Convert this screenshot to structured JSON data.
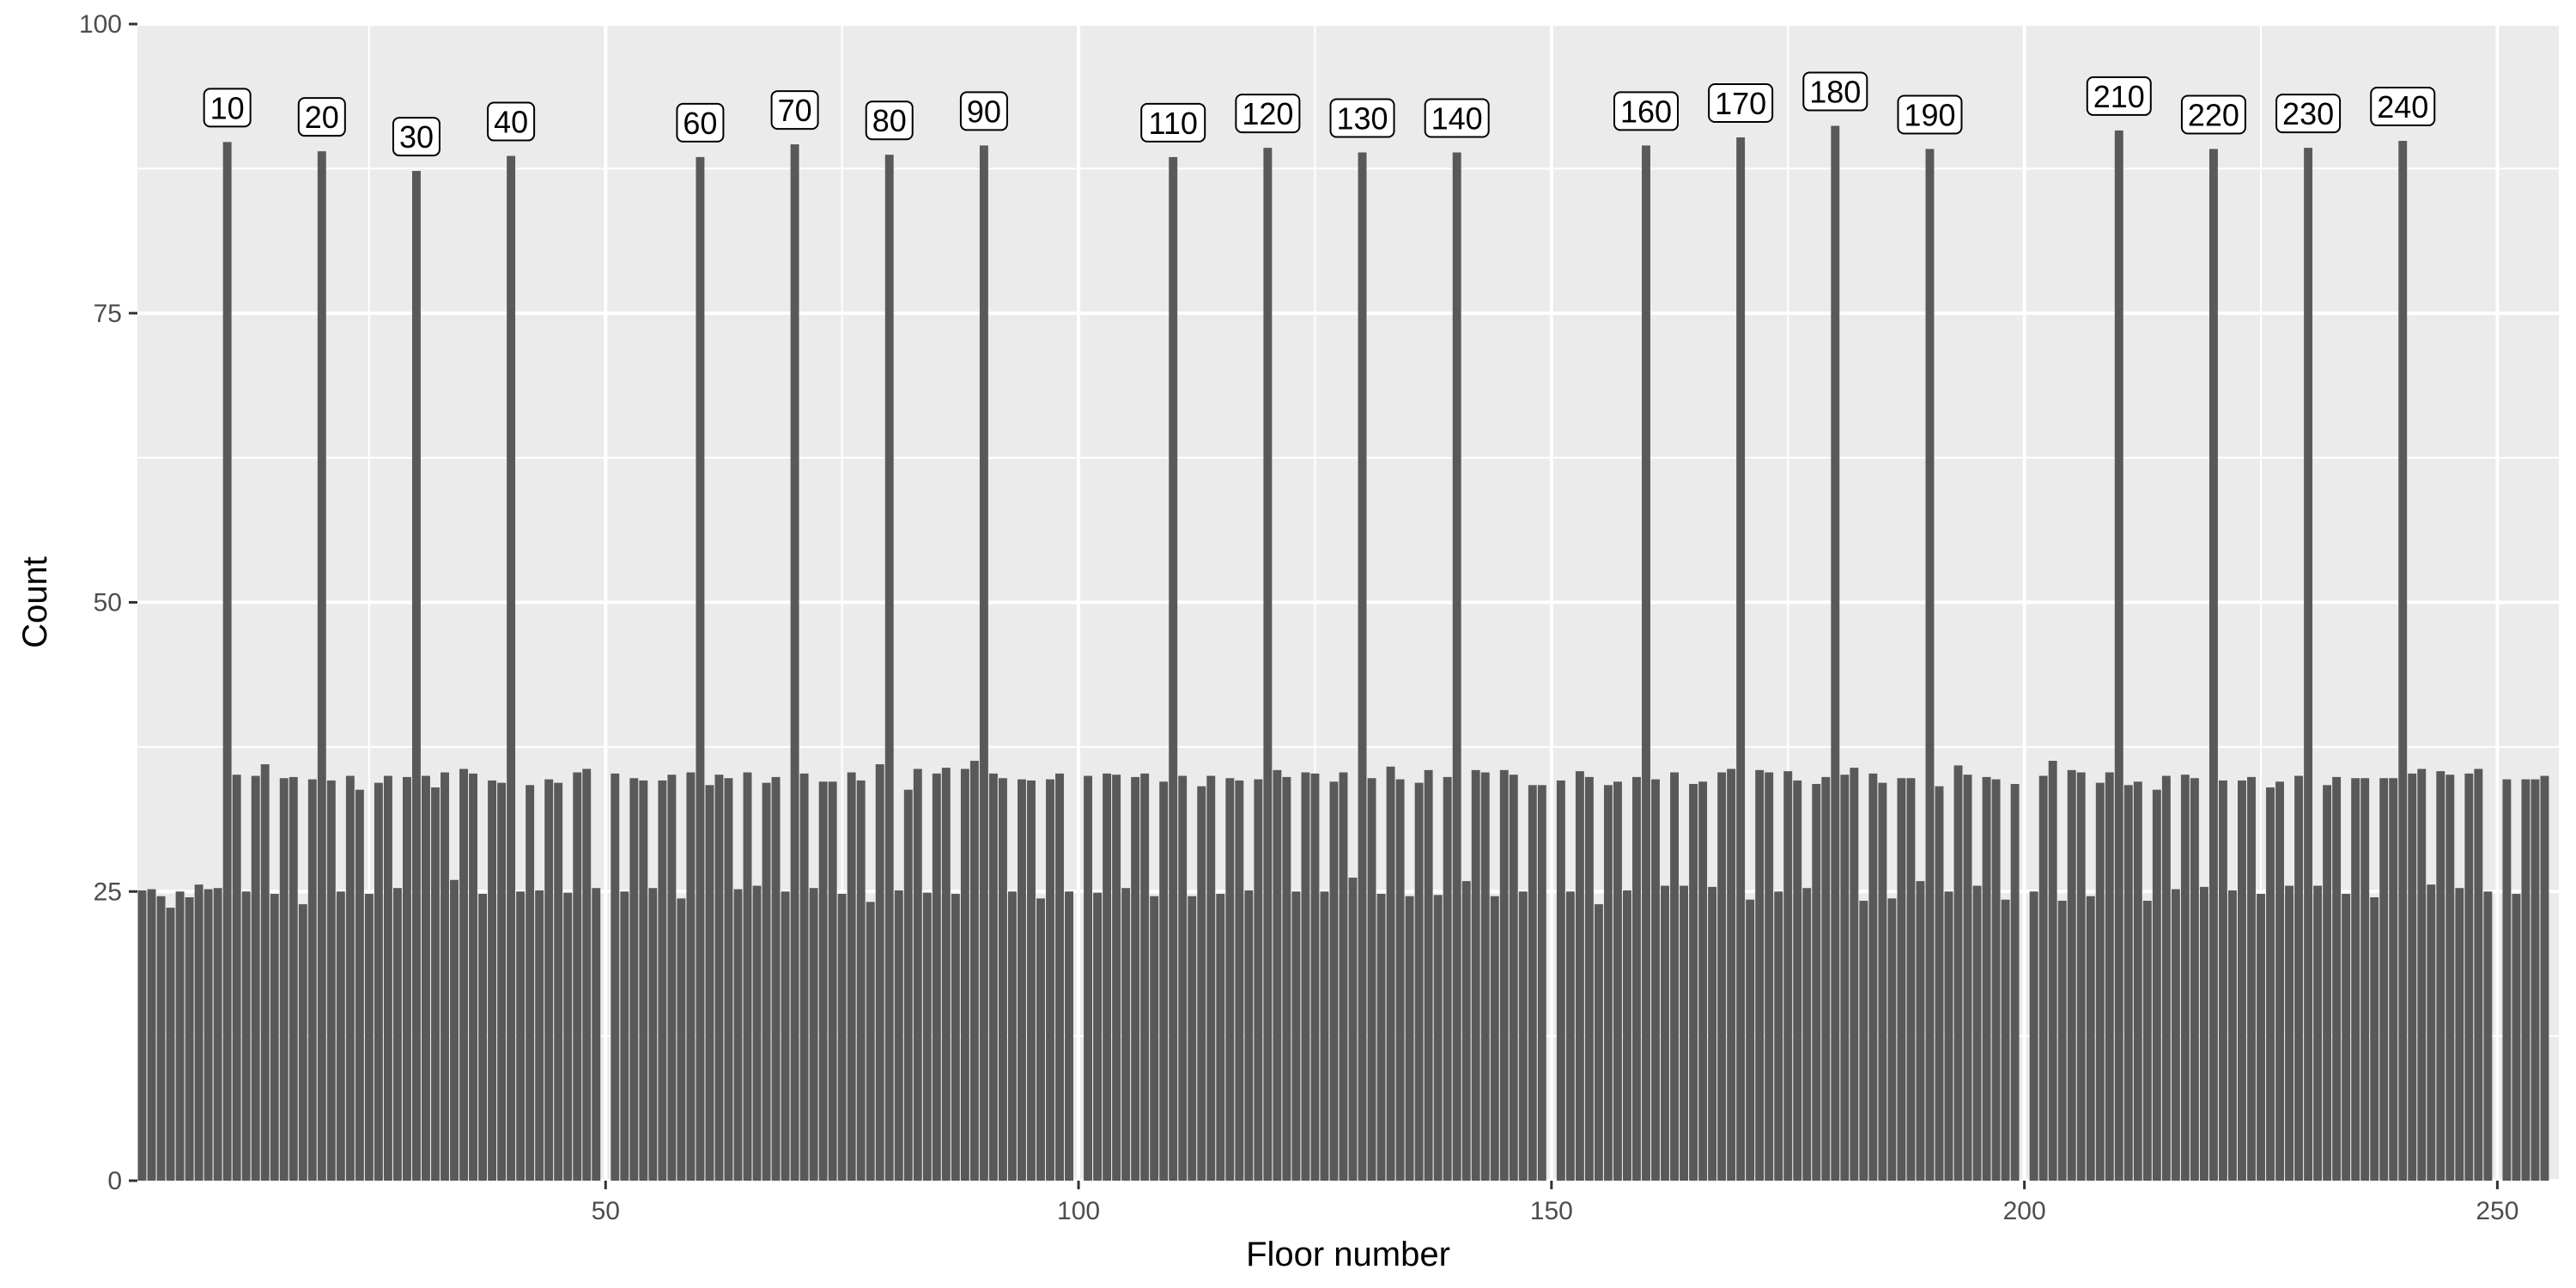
{
  "chart_data": {
    "type": "bar",
    "title": "",
    "xlabel": "Floor number",
    "ylabel": "Count",
    "xlim": [
      0.5,
      256.5
    ],
    "ylim": [
      0,
      100
    ],
    "x_ticks": [
      50,
      100,
      150,
      200,
      250
    ],
    "y_ticks": [
      0,
      25,
      50,
      75,
      100
    ],
    "grid": true,
    "legend": "none",
    "colors": {
      "bar": "#595959",
      "panel": "#ebebeb",
      "grid": "#ffffff"
    },
    "x": [
      1,
      2,
      3,
      4,
      5,
      6,
      7,
      8,
      9,
      10,
      11,
      12,
      13,
      14,
      15,
      16,
      17,
      18,
      19,
      20,
      21,
      22,
      23,
      24,
      25,
      26,
      27,
      28,
      29,
      30,
      31,
      32,
      33,
      34,
      35,
      36,
      37,
      38,
      39,
      40,
      41,
      42,
      43,
      44,
      45,
      46,
      47,
      48,
      49,
      50,
      51,
      52,
      53,
      54,
      55,
      56,
      57,
      58,
      59,
      60,
      61,
      62,
      63,
      64,
      65,
      66,
      67,
      68,
      69,
      70,
      71,
      72,
      73,
      74,
      75,
      76,
      77,
      78,
      79,
      80,
      81,
      82,
      83,
      84,
      85,
      86,
      87,
      88,
      89,
      90,
      91,
      92,
      93,
      94,
      95,
      96,
      97,
      98,
      99,
      100,
      101,
      102,
      103,
      104,
      105,
      106,
      107,
      108,
      109,
      110,
      111,
      112,
      113,
      114,
      115,
      116,
      117,
      118,
      119,
      120,
      121,
      122,
      123,
      124,
      125,
      126,
      127,
      128,
      129,
      130,
      131,
      132,
      133,
      134,
      135,
      136,
      137,
      138,
      139,
      140,
      141,
      142,
      143,
      144,
      145,
      146,
      147,
      148,
      149,
      150,
      151,
      152,
      153,
      154,
      155,
      156,
      157,
      158,
      159,
      160,
      161,
      162,
      163,
      164,
      165,
      166,
      167,
      168,
      169,
      170,
      171,
      172,
      173,
      174,
      175,
      176,
      177,
      178,
      179,
      180,
      181,
      182,
      183,
      184,
      185,
      186,
      187,
      188,
      189,
      190,
      191,
      192,
      193,
      194,
      195,
      196,
      197,
      198,
      199,
      200,
      201,
      202,
      203,
      204,
      205,
      206,
      207,
      208,
      209,
      210,
      211,
      212,
      213,
      214,
      215,
      216,
      217,
      218,
      219,
      220,
      221,
      222,
      223,
      224,
      225,
      226,
      227,
      228,
      229,
      230,
      231,
      232,
      233,
      234,
      235,
      236,
      237,
      238,
      239,
      240,
      241,
      242,
      243,
      244,
      245,
      246,
      247,
      248,
      249,
      250,
      251,
      252,
      253,
      254,
      255,
      256
    ],
    "values": [
      25.1,
      25.2,
      24.6,
      23.6,
      25.0,
      24.5,
      25.6,
      25.2,
      25.3,
      89.8,
      35.1,
      25.0,
      35.0,
      36.0,
      24.8,
      34.8,
      34.9,
      23.9,
      34.7,
      89.0,
      34.6,
      25.0,
      35.0,
      33.8,
      24.8,
      34.4,
      35.0,
      25.3,
      34.9,
      87.3,
      35.0,
      34.0,
      35.3,
      26.0,
      35.6,
      35.2,
      24.8,
      34.6,
      34.4,
      88.6,
      25.0,
      34.2,
      25.1,
      34.7,
      34.4,
      24.9,
      35.3,
      35.6,
      25.3,
      0,
      35.2,
      25.0,
      34.8,
      34.6,
      25.3,
      34.6,
      35.1,
      24.4,
      35.3,
      88.5,
      34.2,
      35.1,
      34.8,
      25.2,
      35.3,
      25.5,
      34.4,
      34.9,
      25.0,
      89.6,
      35.2,
      25.3,
      34.5,
      34.5,
      24.8,
      35.3,
      34.6,
      24.1,
      36.0,
      88.7,
      25.1,
      33.8,
      35.6,
      24.9,
      35.2,
      35.7,
      24.8,
      35.6,
      36.3,
      89.5,
      35.2,
      34.8,
      25.0,
      34.7,
      34.6,
      24.4,
      34.7,
      35.2,
      25.0,
      0,
      35.0,
      24.9,
      35.2,
      35.1,
      25.3,
      34.9,
      35.2,
      24.6,
      34.5,
      88.5,
      35.0,
      24.6,
      34.1,
      35.0,
      24.8,
      34.8,
      34.6,
      25.1,
      34.7,
      89.3,
      35.5,
      34.9,
      25.0,
      35.3,
      35.2,
      25.0,
      34.5,
      35.3,
      26.2,
      88.9,
      34.8,
      24.8,
      35.8,
      34.7,
      24.6,
      34.4,
      35.5,
      24.7,
      34.9,
      88.9,
      25.9,
      35.5,
      35.3,
      24.6,
      35.5,
      35.1,
      25.0,
      34.2,
      34.2,
      0,
      34.6,
      25.0,
      35.4,
      34.9,
      23.9,
      34.2,
      34.5,
      25.1,
      34.9,
      89.5,
      34.7,
      25.5,
      35.3,
      25.5,
      34.3,
      34.5,
      25.4,
      35.3,
      35.6,
      90.2,
      24.3,
      35.5,
      35.3,
      25.0,
      35.4,
      34.6,
      25.3,
      34.3,
      34.9,
      91.2,
      35.1,
      35.7,
      24.2,
      35.2,
      34.4,
      24.4,
      34.8,
      34.8,
      25.9,
      89.2,
      34.1,
      25.0,
      35.9,
      35.1,
      25.5,
      34.9,
      34.7,
      24.3,
      34.3,
      0,
      25.0,
      35.0,
      36.3,
      24.2,
      35.5,
      35.3,
      24.6,
      34.4,
      35.3,
      90.8,
      34.2,
      34.5,
      24.2,
      33.8,
      35.0,
      25.2,
      35.1,
      34.8,
      25.4,
      89.2,
      34.6,
      25.1,
      34.6,
      34.9,
      24.8,
      34.0,
      34.5,
      25.5,
      35.0,
      89.3,
      25.5,
      34.2,
      34.9,
      24.8,
      34.8,
      34.8,
      24.5,
      34.8,
      34.8,
      89.9,
      35.2,
      35.6,
      25.6,
      35.4,
      35.1,
      25.3,
      35.2,
      35.6,
      25.0,
      0,
      34.7,
      24.8,
      34.7,
      34.7,
      35.0,
      0
    ],
    "annotations": [
      {
        "x": 10,
        "y": 89.8,
        "label": "10"
      },
      {
        "x": 20,
        "y": 89.0,
        "label": "20"
      },
      {
        "x": 30,
        "y": 87.3,
        "label": "30"
      },
      {
        "x": 40,
        "y": 88.6,
        "label": "40"
      },
      {
        "x": 60,
        "y": 88.5,
        "label": "60"
      },
      {
        "x": 70,
        "y": 89.6,
        "label": "70"
      },
      {
        "x": 80,
        "y": 88.7,
        "label": "80"
      },
      {
        "x": 90,
        "y": 89.5,
        "label": "90"
      },
      {
        "x": 110,
        "y": 88.5,
        "label": "110"
      },
      {
        "x": 120,
        "y": 89.3,
        "label": "120"
      },
      {
        "x": 130,
        "y": 88.9,
        "label": "130"
      },
      {
        "x": 140,
        "y": 88.9,
        "label": "140"
      },
      {
        "x": 160,
        "y": 89.5,
        "label": "160"
      },
      {
        "x": 170,
        "y": 90.2,
        "label": "170"
      },
      {
        "x": 180,
        "y": 91.2,
        "label": "180"
      },
      {
        "x": 190,
        "y": 89.2,
        "label": "190"
      },
      {
        "x": 210,
        "y": 90.8,
        "label": "210"
      },
      {
        "x": 220,
        "y": 89.2,
        "label": "220"
      },
      {
        "x": 230,
        "y": 89.3,
        "label": "230"
      },
      {
        "x": 240,
        "y": 89.9,
        "label": "240"
      }
    ]
  }
}
